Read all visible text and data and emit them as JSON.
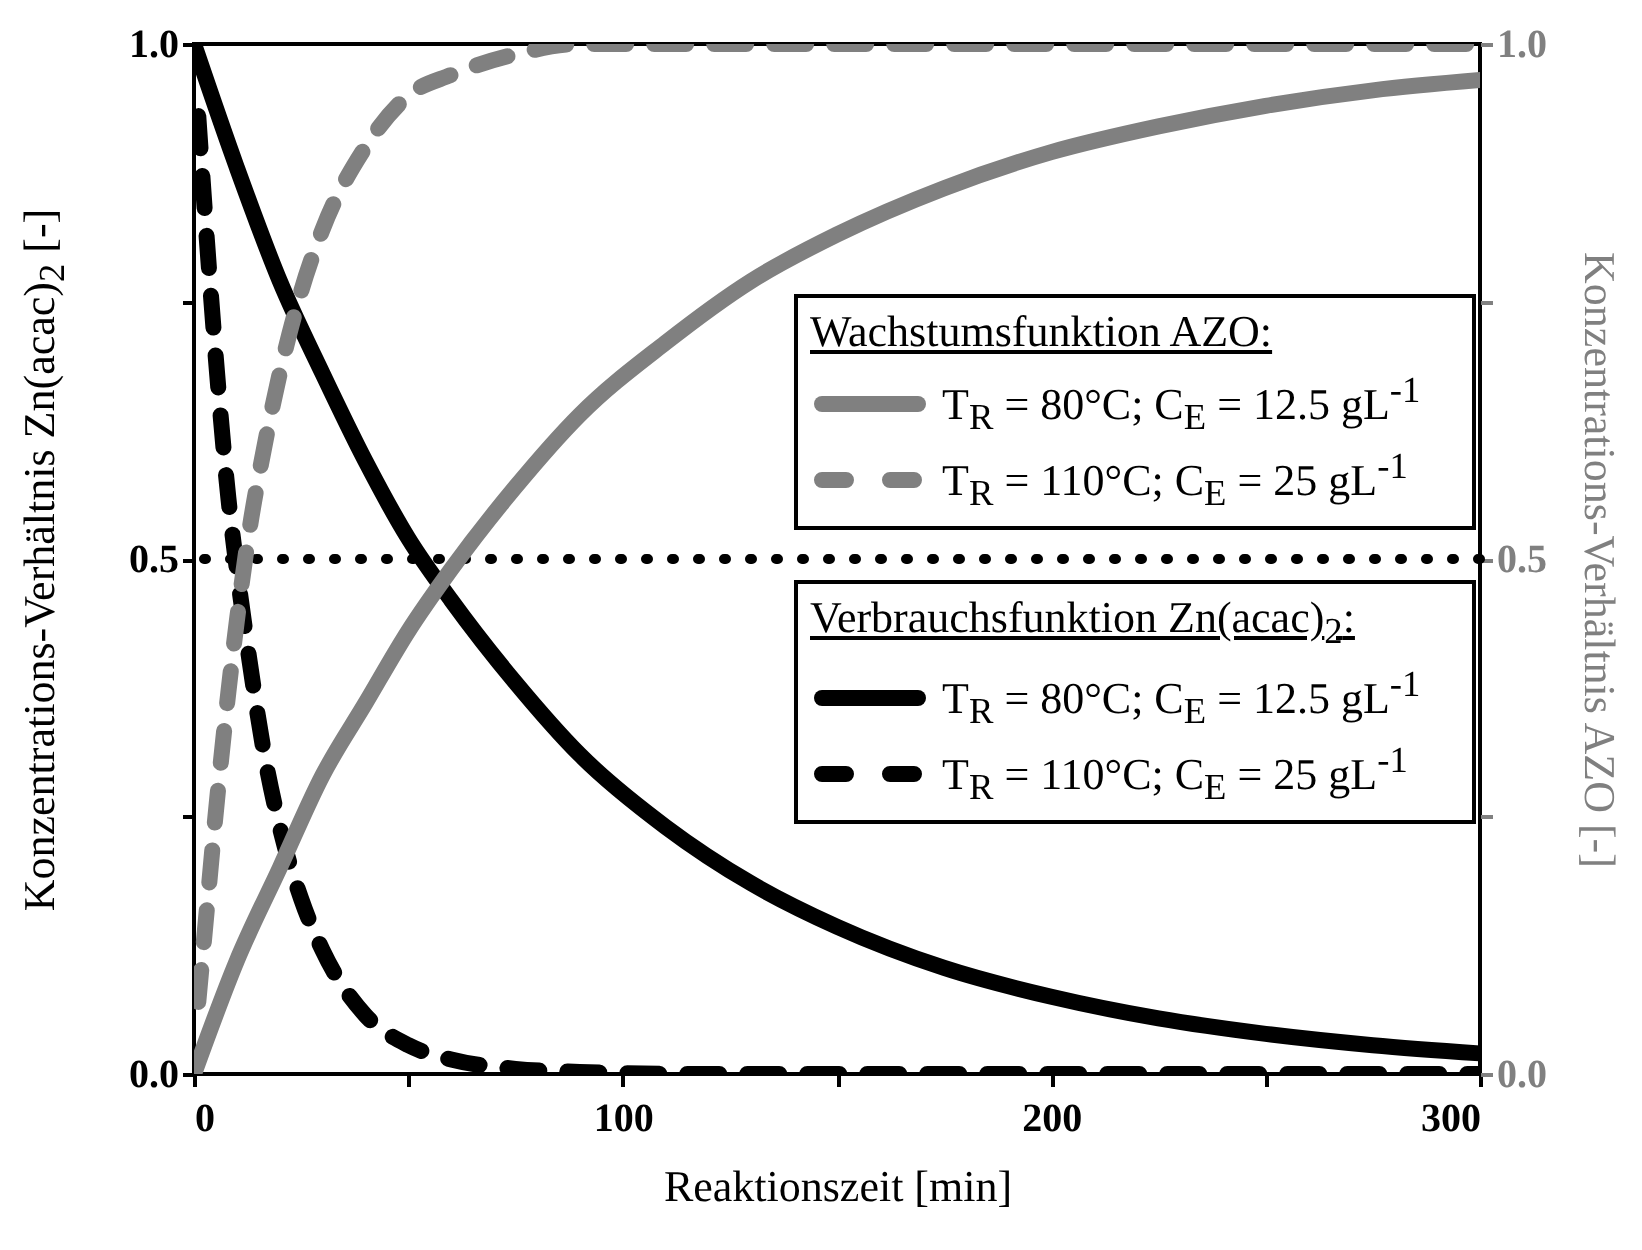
{
  "chart_data": {
    "type": "line",
    "xlabel": "Reaktionszeit [min]",
    "ylabel": "Konzentrations-Verhältnis Zn(acac)$_{2}$ [-]",
    "y2label": "Konzentrations-Verhältnis AZO [-]",
    "xlim": [
      0,
      300
    ],
    "xticks": [
      0,
      {
        "value": 50,
        "label": null
      },
      100,
      {
        "value": 150,
        "label": null
      },
      200,
      {
        "value": 250,
        "label": null
      },
      300
    ],
    "ylim": [
      0,
      1
    ],
    "yticks": [
      {
        "value": 0,
        "label": "0.0"
      },
      {
        "value": 0.25,
        "label": null
      },
      {
        "value": 0.5,
        "label": "0.5"
      },
      {
        "value": 0.75,
        "label": null
      },
      {
        "value": 1,
        "label": "1.0"
      }
    ],
    "y2lim": [
      0,
      1
    ],
    "y2ticks": [
      {
        "value": 0,
        "label": "0.0"
      },
      {
        "value": 0.25,
        "label": null
      },
      {
        "value": 0.5,
        "label": "0.5"
      },
      {
        "value": 0.75,
        "label": null
      },
      {
        "value": 1,
        "label": "1.0"
      }
    ],
    "grid": false,
    "legend": "right",
    "annotations": [
      "Wachstumsfunktion AZO:",
      "Verbrauchsfunktion Zn(acac)$_{2}$:"
    ],
    "ref_lines": [
      {
        "axis": "y",
        "value": 0.5,
        "line_style": "dotted",
        "color": "#000000"
      }
    ],
    "series": [
      {
        "name": "T$_{R}$ = 80°C; C$_{E}$ = 12.5 gL$^{-1}$",
        "color": "#808080",
        "axis": "y2",
        "line_style": "solid",
        "x": [
          0,
          10,
          20,
          30,
          40,
          50,
          60,
          75,
          90,
          110,
          130,
          150,
          175,
          200,
          225,
          250,
          275,
          300
        ],
        "values": [
          0,
          0.11,
          0.2,
          0.29,
          0.36,
          0.43,
          0.49,
          0.57,
          0.64,
          0.71,
          0.77,
          0.815,
          0.86,
          0.895,
          0.92,
          0.94,
          0.955,
          0.965
        ]
      },
      {
        "name": "T$_{R}$ = 110°C; C$_{E}$ = 25 gL$^{-1}$",
        "color": "#808080",
        "axis": "y2",
        "line_style": "dashed",
        "x": [
          1,
          3,
          5,
          8,
          10,
          13,
          16,
          20,
          25,
          30,
          40,
          50,
          60,
          75,
          90,
          120,
          150,
          200,
          250,
          300
        ],
        "values": [
          0.07,
          0.16,
          0.25,
          0.37,
          0.44,
          0.53,
          0.6,
          0.68,
          0.76,
          0.82,
          0.9,
          0.95,
          0.97,
          0.99,
          1,
          1,
          1,
          1,
          1,
          1
        ]
      },
      {
        "name": "T$_{R}$ = 80°C; C$_{E}$ = 12.5 gL$^{-1}$",
        "color": "#000000",
        "axis": "y",
        "line_style": "solid",
        "x": [
          0,
          10,
          20,
          30,
          40,
          50,
          60,
          75,
          90,
          110,
          130,
          150,
          175,
          200,
          225,
          250,
          275,
          300
        ],
        "values": [
          1,
          0.88,
          0.77,
          0.68,
          0.595,
          0.52,
          0.46,
          0.38,
          0.31,
          0.24,
          0.185,
          0.143,
          0.103,
          0.075,
          0.054,
          0.039,
          0.028,
          0.02
        ]
      },
      {
        "name": "T$_{R}$ = 110°C; C$_{E}$ = 25 gL$^{-1}$",
        "color": "#000000",
        "axis": "y",
        "line_style": "dashed",
        "x": [
          1,
          3,
          5,
          8,
          10,
          13,
          16,
          20,
          25,
          30,
          40,
          50,
          60,
          75,
          90,
          120,
          150,
          200,
          250,
          300
        ],
        "values": [
          0.93,
          0.81,
          0.7,
          0.56,
          0.49,
          0.4,
          0.32,
          0.24,
          0.17,
          0.12,
          0.057,
          0.028,
          0.014,
          0.005,
          0.002,
          0,
          0,
          0,
          0,
          0
        ]
      }
    ]
  }
}
